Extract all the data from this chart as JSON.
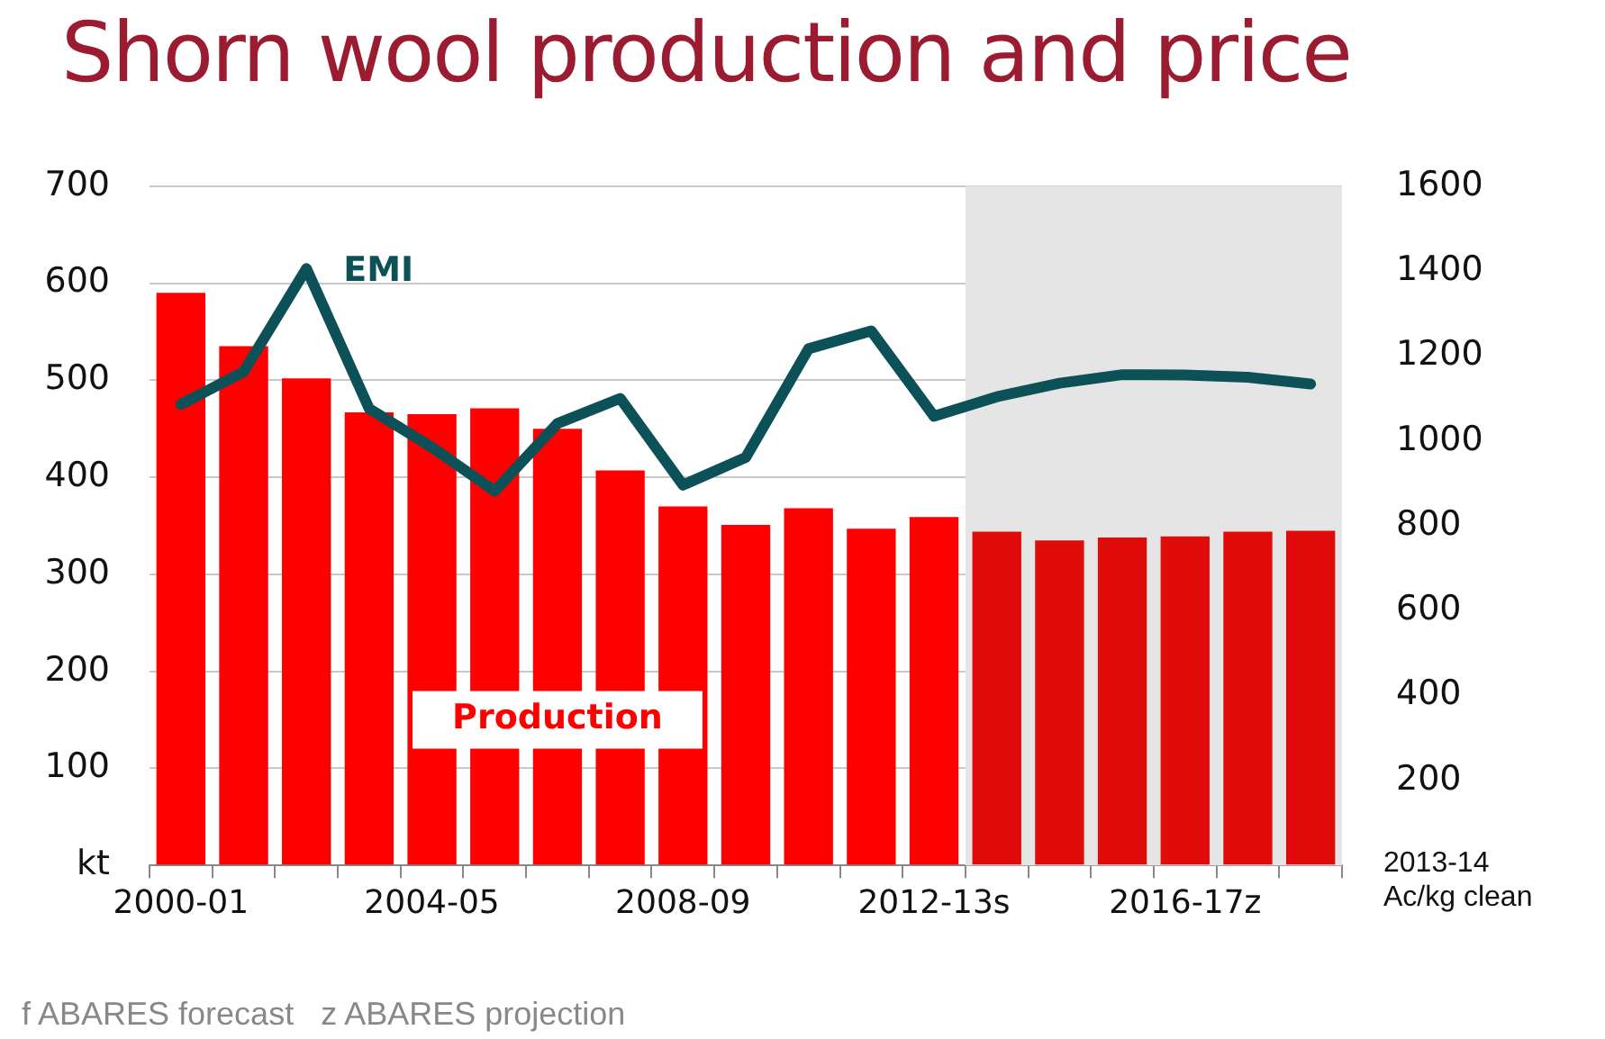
{
  "chart_data": {
    "type": "bar",
    "title": "Shorn wool production and price",
    "y2label": "2013-14 Ac/kg clean",
    "categories": [
      "2000-01",
      null,
      null,
      null,
      "2004-05",
      null,
      null,
      null,
      "2008-09",
      null,
      null,
      null,
      "2012-13s",
      null,
      null,
      null,
      "2016-17z",
      null,
      null
    ],
    "series": [
      {
        "name": "Production",
        "colors": [
          "#ff0000",
          "#ff0000",
          "#ff0000",
          "#ff0000",
          "#ff0000",
          "#ff0000",
          "#ff0000",
          "#ff0000",
          "#ff0000",
          "#ff0000",
          "#ff0000",
          "#ff0000",
          "#ff0000",
          "#e00c0c",
          "#e00c0c",
          "#e00c0c",
          "#e00c0c",
          "#e00c0c",
          "#e00c0c"
        ],
        "values": [
          590,
          535,
          502,
          467,
          465,
          471,
          450,
          407,
          370,
          351,
          368,
          347,
          359,
          344,
          335,
          338,
          339,
          344,
          345
        ]
      },
      {
        "type": "line",
        "name": "EMI",
        "color": "#0d5158",
        "axis": "y2",
        "values": [
          1086,
          1163,
          1406,
          1076,
          985,
          882,
          1041,
          1100,
          896,
          961,
          1217,
          1259,
          1058,
          1104,
          1136,
          1156,
          1155,
          1150,
          1134
        ]
      }
    ],
    "ylim": [
      0,
      700
    ],
    "yticks": [
      {
        "value": 0,
        "label": "kt"
      },
      100,
      200,
      300,
      400,
      500,
      600,
      700
    ],
    "y2lim": [
      0,
      1600
    ],
    "y2ticks": [
      200,
      400,
      600,
      800,
      1000,
      1200,
      1400,
      1600
    ],
    "grid": "y",
    "legend": false,
    "marker": "none",
    "line_style": "solid",
    "annotations": [
      "f ABARES forecast   z ABARES projection"
    ]
  }
}
